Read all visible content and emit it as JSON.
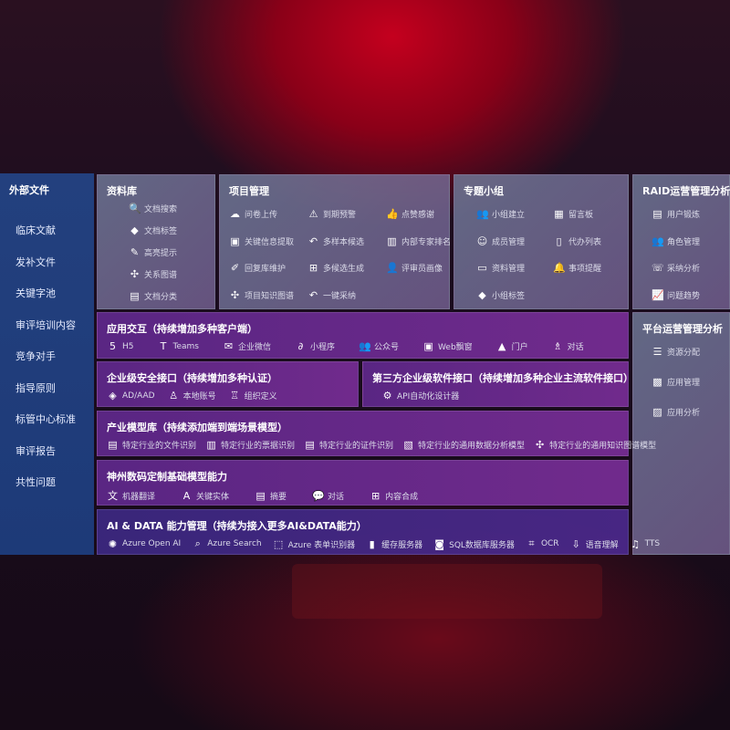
{
  "sidebar": {
    "title": "外部文件",
    "items": [
      "临床文献",
      "发补文件",
      "关键字池",
      "审评培训内容",
      "竞争对手",
      "指导原则",
      "标管中心标准",
      "审评报告",
      "共性问题"
    ]
  },
  "library": {
    "title": "资料库",
    "items": [
      {
        "icon": "doc-search-icon",
        "label": "文档搜索"
      },
      {
        "icon": "tag-icon",
        "label": "文档标签"
      },
      {
        "icon": "pen-icon",
        "label": "高亮提示"
      },
      {
        "icon": "graph-icon",
        "label": "关系图谱"
      },
      {
        "icon": "doc-category-icon",
        "label": "文档分类"
      }
    ]
  },
  "project": {
    "title": "项目管理",
    "items": [
      {
        "icon": "cloud-upload-icon",
        "label": "问卷上传"
      },
      {
        "icon": "alarm-icon",
        "label": "到期预警"
      },
      {
        "icon": "thumbs-up-icon",
        "label": "点赞感谢"
      },
      {
        "icon": "window-icon",
        "label": "关键信息提取"
      },
      {
        "icon": "reply-icon",
        "label": "多样本候选"
      },
      {
        "icon": "ranking-icon",
        "label": "内部专家排名"
      },
      {
        "icon": "edit-icon",
        "label": "回复库维护"
      },
      {
        "icon": "puzzle-icon",
        "label": "多候选生成"
      },
      {
        "icon": "user-icon",
        "label": "评审员画像"
      },
      {
        "icon": "graph-icon",
        "label": "项目知识图谱"
      },
      {
        "icon": "reply-icon",
        "label": "一键采纳"
      }
    ]
  },
  "group": {
    "title": "专题小组",
    "items": [
      {
        "icon": "users-icon",
        "label": "小组建立"
      },
      {
        "icon": "bbs-icon",
        "label": "留言板"
      },
      {
        "icon": "user-add-icon",
        "label": "成员管理"
      },
      {
        "icon": "clipboard-icon",
        "label": "代办列表"
      },
      {
        "icon": "folder-icon",
        "label": "资料管理"
      },
      {
        "icon": "bell-icon",
        "label": "事项提醒"
      },
      {
        "icon": "tag-icon",
        "label": "小组标签"
      }
    ]
  },
  "raid": {
    "title": "RAID运营管理分析",
    "items": [
      {
        "icon": "id-card-icon",
        "label": "用户锻炼"
      },
      {
        "icon": "users-icon",
        "label": "角色管理"
      },
      {
        "icon": "qa-icon",
        "label": "采纳分析"
      },
      {
        "icon": "trend-icon",
        "label": "问题趋势"
      }
    ]
  },
  "platform": {
    "title": "平台运营管理分析",
    "items": [
      {
        "icon": "list-icon",
        "label": "资源分配"
      },
      {
        "icon": "apps-icon",
        "label": "应用管理"
      },
      {
        "icon": "chart-icon",
        "label": "应用分析"
      }
    ]
  },
  "app": {
    "title": "应用交互（持续增加多种客户端）",
    "items": [
      {
        "icon": "html5-icon",
        "label": "H5"
      },
      {
        "icon": "teams-icon",
        "label": "Teams"
      },
      {
        "icon": "wechat-icon",
        "label": "企业微信"
      },
      {
        "icon": "miniprogram-icon",
        "label": "小程序"
      },
      {
        "icon": "users-icon",
        "label": "公众号"
      },
      {
        "icon": "window-icon",
        "label": "Web飘窗"
      },
      {
        "icon": "portal-icon",
        "label": "门户"
      },
      {
        "icon": "chat-users-icon",
        "label": "对话"
      }
    ]
  },
  "security": {
    "title": "企业级安全接口（持续增加多种认证）",
    "items": [
      {
        "icon": "ad-icon",
        "label": "AD/AAD"
      },
      {
        "icon": "user-lock-icon",
        "label": "本地账号"
      },
      {
        "icon": "org-icon",
        "label": "组织定义"
      }
    ]
  },
  "third": {
    "title": "第三方企业级软件接口（持续增加多种企业主流软件接口）",
    "items": [
      {
        "icon": "gear-icon",
        "label": "API自动化设计器"
      }
    ]
  },
  "industry": {
    "title": "产业模型库（持续添加端到端场景模型）",
    "items": [
      {
        "icon": "doc-icon",
        "label": "特定行业的文件识别"
      },
      {
        "icon": "receipt-icon",
        "label": "特定行业的票据识别"
      },
      {
        "icon": "id-card-icon",
        "label": "特定行业的证件识别"
      },
      {
        "icon": "image-icon",
        "label": "特定行业的通用数据分析模型"
      },
      {
        "icon": "graph-icon",
        "label": "特定行业的通用知识图谱模型"
      }
    ]
  },
  "base": {
    "title": "神州数码定制基础模型能力",
    "items": [
      {
        "icon": "translate-icon",
        "label": "机器翻译"
      },
      {
        "icon": "entity-icon",
        "label": "关键实体"
      },
      {
        "icon": "doc-icon",
        "label": "摘要"
      },
      {
        "icon": "chat-icon",
        "label": "对话"
      },
      {
        "icon": "puzzle-icon",
        "label": "内容合成"
      }
    ]
  },
  "ai": {
    "title": "AI & DATA 能力管理（持续为接入更多AI&DATA能力）",
    "items": [
      {
        "icon": "openai-icon",
        "label": "Azure Open AI"
      },
      {
        "icon": "search-icon",
        "label": "Azure Search"
      },
      {
        "icon": "form-icon",
        "label": "Azure 表单识别器"
      },
      {
        "icon": "cache-icon",
        "label": "缓存服务器"
      },
      {
        "icon": "sql-icon",
        "label": "SQL数据库服务器"
      },
      {
        "icon": "ocr-icon",
        "label": "OCR"
      },
      {
        "icon": "speech-icon",
        "label": "语音理解"
      },
      {
        "icon": "tts-icon",
        "label": "TTS"
      }
    ]
  }
}
